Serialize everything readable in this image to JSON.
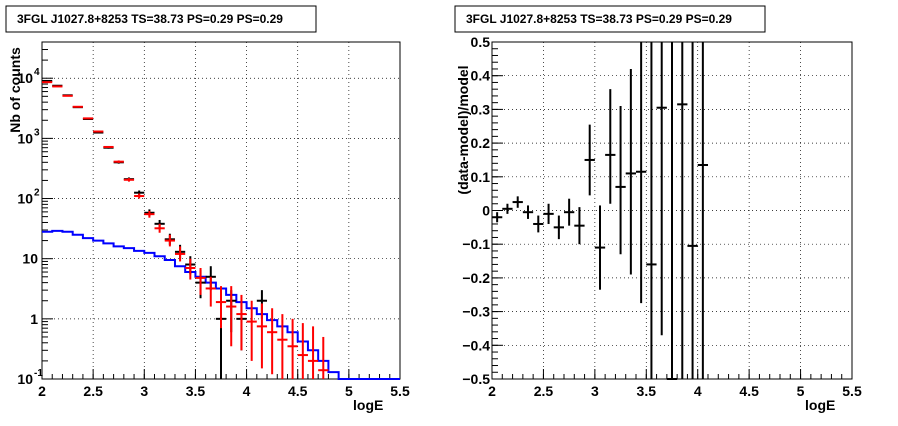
{
  "chart_data": [
    {
      "type": "line",
      "title": "3FGL J1027.8+8253 TS=38.73 PS=0.29 PS=0.29",
      "xlabel": "logE",
      "ylabel": "Nb of counts",
      "xlim": [
        2,
        5.5
      ],
      "ylim": [
        0.1,
        40000
      ],
      "yscale": "log",
      "grid": true,
      "x_ticks": [
        "2",
        "2.5",
        "3",
        "3.5",
        "4",
        "4.5",
        "5",
        "5.5"
      ],
      "y_ticks": [
        {
          "value": 0.1,
          "label": "10",
          "exp": "-1"
        },
        {
          "value": 1,
          "label": "1",
          "exp": ""
        },
        {
          "value": 10,
          "label": "10",
          "exp": ""
        },
        {
          "value": 100,
          "label": "10",
          "exp": "2"
        },
        {
          "value": 1000,
          "label": "10",
          "exp": "3"
        },
        {
          "value": 10000,
          "label": "10",
          "exp": "4"
        }
      ],
      "bin_edges": [
        2.0,
        2.1,
        2.2,
        2.3,
        2.4,
        2.5,
        2.6,
        2.7,
        2.8,
        2.9,
        3.0,
        3.1,
        3.2,
        3.3,
        3.4,
        3.5,
        3.6,
        3.7,
        3.8,
        3.9,
        4.0,
        4.1,
        4.2,
        4.3,
        4.4,
        4.5,
        4.6,
        4.7,
        4.8,
        4.9,
        5.0,
        5.1,
        5.2,
        5.3,
        5.4,
        5.5
      ],
      "series": [
        {
          "kind": "step",
          "color": "#0000ff",
          "values": [
            28,
            29,
            28,
            25,
            22,
            20,
            18,
            16,
            15,
            13.5,
            12.5,
            11,
            9.5,
            7.5,
            6,
            5,
            4,
            3.2,
            2.5,
            1.9,
            1.5,
            1.2,
            0.95,
            0.75,
            0.6,
            0.42,
            0.3,
            0.2,
            0.13,
            0.1,
            0.1,
            0.1,
            0.1,
            0.1,
            0.1
          ]
        },
        {
          "kind": "errorbar",
          "color": "#000000",
          "points": [
            {
              "x": 2.05,
              "y": 9000,
              "lo": 8800,
              "hi": 9200
            },
            {
              "x": 2.15,
              "y": 7500,
              "lo": 7350,
              "hi": 7650
            },
            {
              "x": 2.25,
              "y": 5200,
              "lo": 5100,
              "hi": 5300
            },
            {
              "x": 2.35,
              "y": 3300,
              "lo": 3220,
              "hi": 3380
            },
            {
              "x": 2.45,
              "y": 2100,
              "lo": 2050,
              "hi": 2150
            },
            {
              "x": 2.55,
              "y": 1250,
              "lo": 1210,
              "hi": 1290
            },
            {
              "x": 2.65,
              "y": 700,
              "lo": 675,
              "hi": 725
            },
            {
              "x": 2.75,
              "y": 400,
              "lo": 380,
              "hi": 420
            },
            {
              "x": 2.85,
              "y": 210,
              "lo": 196,
              "hi": 224
            },
            {
              "x": 2.95,
              "y": 125,
              "lo": 114,
              "hi": 136
            },
            {
              "x": 3.05,
              "y": 58,
              "lo": 51,
              "hi": 66
            },
            {
              "x": 3.15,
              "y": 38,
              "lo": 32,
              "hi": 44
            },
            {
              "x": 3.25,
              "y": 21,
              "lo": 17,
              "hi": 26
            },
            {
              "x": 3.35,
              "y": 13,
              "lo": 10,
              "hi": 17
            },
            {
              "x": 3.45,
              "y": 8,
              "lo": 5.5,
              "hi": 11
            },
            {
              "x": 3.55,
              "y": 4,
              "lo": 2.2,
              "hi": 6.5
            },
            {
              "x": 3.65,
              "y": 5,
              "lo": 3,
              "hi": 7.5
            },
            {
              "x": 3.75,
              "y": 1,
              "lo": 0.1,
              "hi": 3
            },
            {
              "x": 3.85,
              "y": 2,
              "lo": 0.6,
              "hi": 3
            },
            {
              "x": 3.95,
              "y": 1,
              "lo": 0.3,
              "hi": 2
            },
            {
              "x": 4.15,
              "y": 2,
              "lo": 1,
              "hi": 3
            }
          ]
        },
        {
          "kind": "errorbar",
          "color": "#ff0000",
          "points": [
            {
              "x": 2.05,
              "y": 8600,
              "lo": 8400,
              "hi": 8800
            },
            {
              "x": 2.15,
              "y": 7300,
              "lo": 7150,
              "hi": 7450
            },
            {
              "x": 2.25,
              "y": 5100,
              "lo": 5000,
              "hi": 5200
            },
            {
              "x": 2.35,
              "y": 3350,
              "lo": 3270,
              "hi": 3430
            },
            {
              "x": 2.45,
              "y": 2150,
              "lo": 2100,
              "hi": 2200
            },
            {
              "x": 2.55,
              "y": 1300,
              "lo": 1260,
              "hi": 1340
            },
            {
              "x": 2.65,
              "y": 720,
              "lo": 695,
              "hi": 745
            },
            {
              "x": 2.75,
              "y": 410,
              "lo": 390,
              "hi": 430
            },
            {
              "x": 2.85,
              "y": 205,
              "lo": 191,
              "hi": 219
            },
            {
              "x": 2.95,
              "y": 110,
              "lo": 100,
              "hi": 121
            },
            {
              "x": 3.05,
              "y": 55,
              "lo": 48,
              "hi": 62
            },
            {
              "x": 3.15,
              "y": 32,
              "lo": 27,
              "hi": 38
            },
            {
              "x": 3.25,
              "y": 20,
              "lo": 16,
              "hi": 25
            },
            {
              "x": 3.35,
              "y": 12,
              "lo": 9,
              "hi": 16
            },
            {
              "x": 3.45,
              "y": 7,
              "lo": 4.5,
              "hi": 10
            },
            {
              "x": 3.55,
              "y": 4.8,
              "lo": 2.5,
              "hi": 7
            },
            {
              "x": 3.65,
              "y": 3.2,
              "lo": 1.6,
              "hi": 5
            },
            {
              "x": 3.75,
              "y": 1.9,
              "lo": 0.7,
              "hi": 3.5
            },
            {
              "x": 3.85,
              "y": 1.6,
              "lo": 0.35,
              "hi": 3.5
            },
            {
              "x": 3.95,
              "y": 1.2,
              "lo": 0.3,
              "hi": 2.5
            },
            {
              "x": 4.05,
              "y": 0.9,
              "lo": 0.2,
              "hi": 2
            },
            {
              "x": 4.15,
              "y": 0.75,
              "lo": 0.15,
              "hi": 1.8
            },
            {
              "x": 4.25,
              "y": 0.6,
              "lo": 0.12,
              "hi": 1.5
            },
            {
              "x": 4.35,
              "y": 0.45,
              "lo": 0.1,
              "hi": 1.2
            },
            {
              "x": 4.45,
              "y": 0.35,
              "lo": 0.1,
              "hi": 1.0
            },
            {
              "x": 4.55,
              "y": 0.25,
              "lo": 0.1,
              "hi": 0.85
            },
            {
              "x": 4.65,
              "y": 0.2,
              "lo": 0.1,
              "hi": 0.75
            },
            {
              "x": 4.75,
              "y": 0.14,
              "lo": 0.1,
              "hi": 0.5
            }
          ]
        }
      ]
    },
    {
      "type": "scatter",
      "title": "3FGL J1027.8+8253 TS=38.73 PS=0.29 PS=0.29",
      "xlabel": "logE",
      "ylabel": "(data-model)/model",
      "xlim": [
        2,
        5.5
      ],
      "ylim": [
        -0.5,
        0.5
      ],
      "grid": true,
      "x_ticks": [
        "2",
        "2.5",
        "3",
        "3.5",
        "4",
        "4.5",
        "5",
        "5.5"
      ],
      "y_ticks": [
        "−0.5",
        "−0.4",
        "−0.3",
        "−0.2",
        "−0.1",
        "0",
        "0.1",
        "0.2",
        "0.3",
        "0.4",
        "0.5"
      ],
      "series": [
        {
          "kind": "errorbar",
          "color": "#000000",
          "points": [
            {
              "x": 2.05,
              "y": -0.02,
              "lo": -0.035,
              "hi": -0.005
            },
            {
              "x": 2.15,
              "y": 0.005,
              "lo": -0.01,
              "hi": 0.02
            },
            {
              "x": 2.25,
              "y": 0.025,
              "lo": 0.008,
              "hi": 0.042
            },
            {
              "x": 2.35,
              "y": -0.005,
              "lo": -0.025,
              "hi": 0.015
            },
            {
              "x": 2.45,
              "y": -0.04,
              "lo": -0.065,
              "hi": -0.015
            },
            {
              "x": 2.55,
              "y": -0.01,
              "lo": -0.04,
              "hi": 0.02
            },
            {
              "x": 2.65,
              "y": -0.05,
              "lo": -0.085,
              "hi": -0.015
            },
            {
              "x": 2.75,
              "y": -0.005,
              "lo": -0.045,
              "hi": 0.035
            },
            {
              "x": 2.85,
              "y": -0.045,
              "lo": -0.1,
              "hi": 0.01
            },
            {
              "x": 2.95,
              "y": 0.15,
              "lo": 0.045,
              "hi": 0.255
            },
            {
              "x": 3.05,
              "y": -0.11,
              "lo": -0.235,
              "hi": 0.015
            },
            {
              "x": 3.15,
              "y": 0.165,
              "lo": 0.02,
              "hi": 0.36
            },
            {
              "x": 3.25,
              "y": 0.07,
              "lo": -0.13,
              "hi": 0.31
            },
            {
              "x": 3.35,
              "y": 0.11,
              "lo": -0.19,
              "hi": 0.42
            },
            {
              "x": 3.45,
              "y": 0.115,
              "lo": -0.275,
              "hi": 0.5
            },
            {
              "x": 3.55,
              "y": -0.16,
              "lo": -0.5,
              "hi": 0.5
            },
            {
              "x": 3.65,
              "y": 0.305,
              "lo": -0.37,
              "hi": 0.5
            },
            {
              "x": 3.75,
              "y": -0.5,
              "lo": -0.5,
              "hi": 0.5
            },
            {
              "x": 3.85,
              "y": 0.315,
              "lo": -0.5,
              "hi": 0.5
            },
            {
              "x": 3.95,
              "y": -0.105,
              "lo": -0.5,
              "hi": 0.5
            },
            {
              "x": 4.05,
              "y": 0.135,
              "lo": -0.5,
              "hi": 0.5
            }
          ]
        }
      ]
    }
  ]
}
